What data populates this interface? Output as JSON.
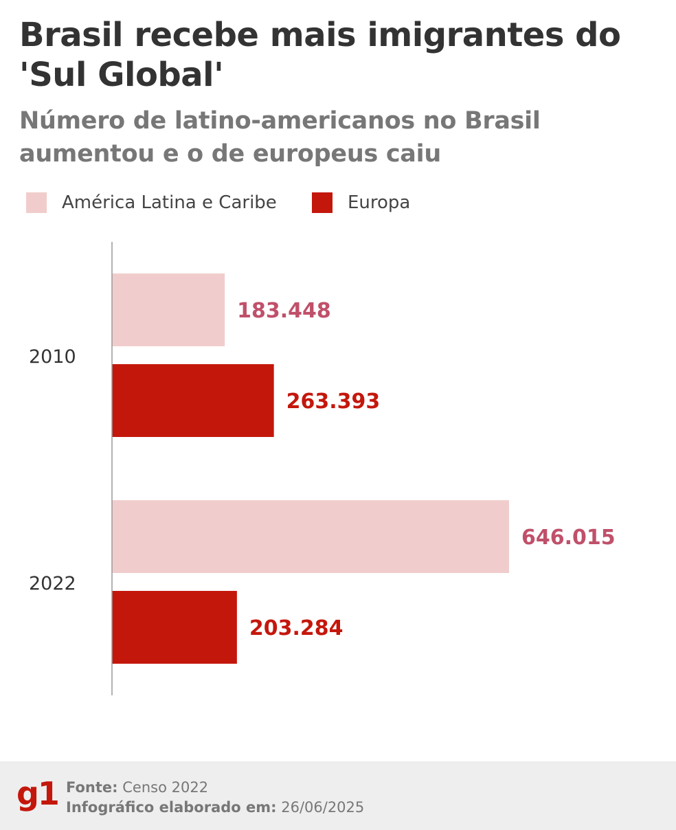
{
  "title": "Brasil recebe mais imigrantes do 'Sul Global'",
  "subtitle": "Número de latino-americanos no Brasil aumentou e o de europeus caiu",
  "colors": {
    "latam": "#f0cdcc",
    "latam_label": "#c0506a",
    "europa": "#c4170c",
    "europa_label": "#c4170c",
    "axis": "#999999"
  },
  "chart_data": {
    "type": "bar",
    "orientation": "horizontal",
    "categories": [
      "2010",
      "2022"
    ],
    "series": [
      {
        "name": "América Latina e Caribe",
        "values": [
          183448,
          646015
        ],
        "labels": [
          "183.448",
          "646.015"
        ]
      },
      {
        "name": "Europa",
        "values": [
          263393,
          203284
        ],
        "labels": [
          "263.393",
          "203.284"
        ]
      }
    ],
    "xlim": [
      0,
      646015
    ],
    "legend": "top-left",
    "grid": false
  },
  "footer": {
    "logo": "g1",
    "source_label": "Fonte:",
    "source_value": "Censo 2022",
    "made_label": "Infográfico elaborado em:",
    "made_value": "26/06/2025"
  }
}
